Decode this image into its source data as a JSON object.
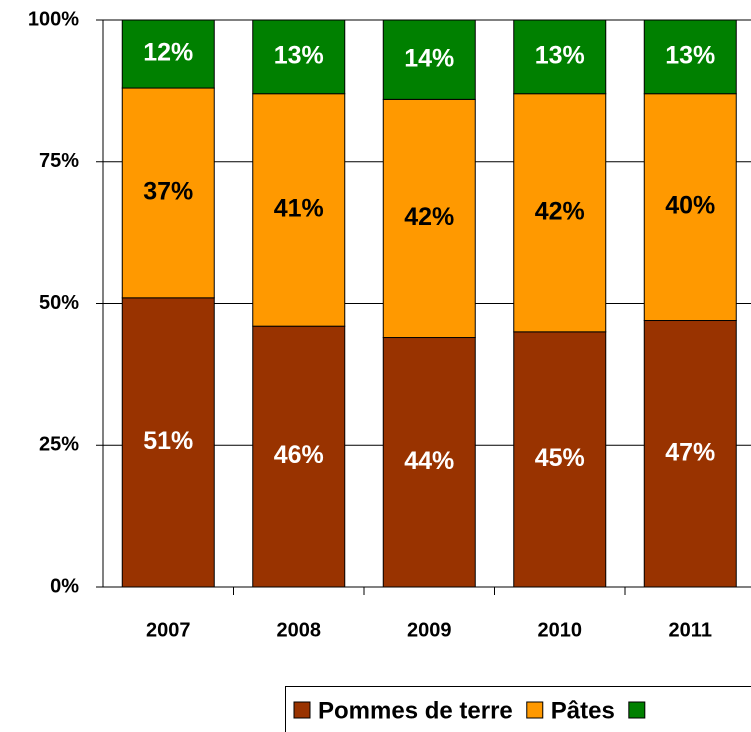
{
  "chart_data": {
    "type": "stacked_bar",
    "categories": [
      "2007",
      "2008",
      "2009",
      "2010",
      "2011"
    ],
    "series": [
      {
        "name": "Pommes de terre",
        "color": "#993300",
        "values": [
          51,
          46,
          44,
          45,
          47
        ],
        "value_labels": [
          "51%",
          "46%",
          "44%",
          "45%",
          "47%"
        ]
      },
      {
        "name": "Pâtes",
        "color": "#FF9900",
        "values": [
          37,
          41,
          42,
          42,
          40
        ],
        "value_labels": [
          "37%",
          "41%",
          "42%",
          "42%",
          "40%"
        ]
      },
      {
        "name": null,
        "color": "#008000",
        "values": [
          12,
          13,
          14,
          13,
          13
        ],
        "value_labels": [
          "12%",
          "13%",
          "14%",
          "13%",
          "13%"
        ]
      }
    ],
    "ylim": [
      0,
      100
    ],
    "yticks": [
      {
        "value": 0,
        "label": "0%"
      },
      {
        "value": 25,
        "label": "25%"
      },
      {
        "value": 50,
        "label": "50%"
      },
      {
        "value": 75,
        "label": "75%"
      },
      {
        "value": 100,
        "label": "100%"
      }
    ],
    "grid": true,
    "legend": "bottom-right"
  }
}
